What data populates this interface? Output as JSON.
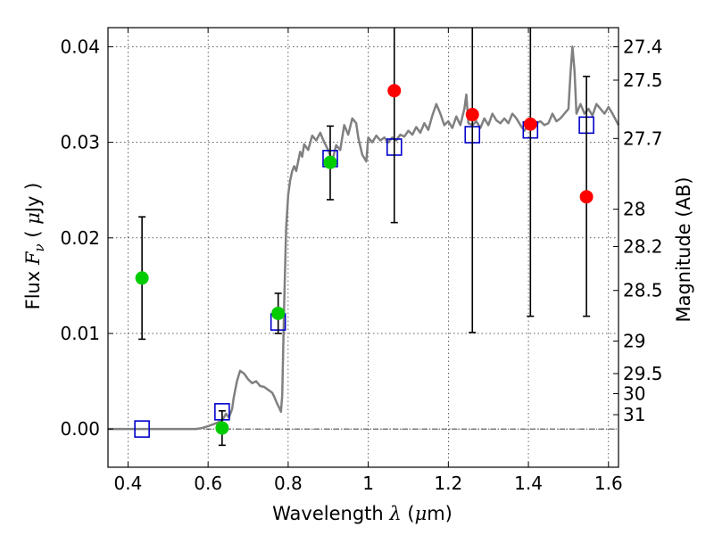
{
  "chart_data": {
    "type": "scatter",
    "title": "",
    "xlabel": {
      "prefix": "Wavelength  ",
      "symbol": "λ",
      "suffix": " (",
      "unit_symbol": "μ",
      "unit": "m)"
    },
    "ylabel": {
      "prefix": "Flux  ",
      "symbol": "F",
      "subscript": "ν",
      "middle": "  (  ",
      "unit_symbol": "μ",
      "unit": "Jy  )"
    },
    "y2label": "Magnitude (AB)",
    "xlim": [
      0.35,
      1.625
    ],
    "ylim": [
      -0.004,
      0.042
    ],
    "grid": true,
    "x_ticks": [
      0.4,
      0.6,
      0.8,
      1.0,
      1.2,
      1.4,
      1.6
    ],
    "x_tick_labels": [
      "0.4",
      "0.6",
      "0.8",
      "1",
      "1.2",
      "1.4",
      "1.6"
    ],
    "y_ticks": [
      0.0,
      0.01,
      0.02,
      0.03,
      0.04
    ],
    "y_tick_labels": [
      "0.00",
      "0.01",
      "0.02",
      "0.03",
      "0.04"
    ],
    "mag_ticks": [
      {
        "label": "27.4",
        "flux": 0.04
      },
      {
        "label": "27.5",
        "flux": 0.0365
      },
      {
        "label": "27.7",
        "flux": 0.0304
      },
      {
        "label": "28",
        "flux": 0.023
      },
      {
        "label": "28.2",
        "flux": 0.0191
      },
      {
        "label": "28.5",
        "flux": 0.0145
      },
      {
        "label": "29",
        "flux": 0.0092
      },
      {
        "label": "29.5",
        "flux": 0.0058
      },
      {
        "label": "30",
        "flux": 0.0037
      },
      {
        "label": "31",
        "flux": 0.0015
      }
    ],
    "zero_line": true,
    "series": [
      {
        "kind": "line",
        "color": "#808080",
        "points": [
          [
            0.35,
            0.0
          ],
          [
            0.57,
            0.0
          ],
          [
            0.585,
            0.0001
          ],
          [
            0.6,
            0.0003
          ],
          [
            0.62,
            0.0006
          ],
          [
            0.635,
            0.0009
          ],
          [
            0.645,
            0.0016
          ],
          [
            0.652,
            0.0012
          ],
          [
            0.66,
            0.0021
          ],
          [
            0.664,
            0.0033
          ],
          [
            0.672,
            0.005
          ],
          [
            0.68,
            0.0061
          ],
          [
            0.69,
            0.0058
          ],
          [
            0.7,
            0.0052
          ],
          [
            0.71,
            0.0048
          ],
          [
            0.72,
            0.005
          ],
          [
            0.73,
            0.0045
          ],
          [
            0.74,
            0.0044
          ],
          [
            0.75,
            0.0041
          ],
          [
            0.76,
            0.0038
          ],
          [
            0.765,
            0.0034
          ],
          [
            0.772,
            0.0027
          ],
          [
            0.778,
            0.0022
          ],
          [
            0.782,
            0.0018
          ],
          [
            0.785,
            0.0035
          ],
          [
            0.79,
            0.013
          ],
          [
            0.795,
            0.021
          ],
          [
            0.8,
            0.0245
          ],
          [
            0.805,
            0.026
          ],
          [
            0.81,
            0.027
          ],
          [
            0.815,
            0.0275
          ],
          [
            0.82,
            0.027
          ],
          [
            0.83,
            0.029
          ],
          [
            0.835,
            0.0285
          ],
          [
            0.84,
            0.0298
          ],
          [
            0.85,
            0.0292
          ],
          [
            0.86,
            0.0307
          ],
          [
            0.87,
            0.0302
          ],
          [
            0.88,
            0.031
          ],
          [
            0.89,
            0.03
          ],
          [
            0.9,
            0.0292
          ],
          [
            0.91,
            0.028
          ],
          [
            0.92,
            0.0297
          ],
          [
            0.93,
            0.0292
          ],
          [
            0.94,
            0.0318
          ],
          [
            0.95,
            0.0308
          ],
          [
            0.96,
            0.0325
          ],
          [
            0.97,
            0.032
          ],
          [
            0.975,
            0.0305
          ],
          [
            0.985,
            0.0287
          ],
          [
            0.995,
            0.028
          ],
          [
            1.0,
            0.0305
          ],
          [
            1.01,
            0.03
          ],
          [
            1.02,
            0.0307
          ],
          [
            1.03,
            0.0302
          ],
          [
            1.04,
            0.0305
          ],
          [
            1.05,
            0.03
          ],
          [
            1.06,
            0.0305
          ],
          [
            1.07,
            0.0302
          ],
          [
            1.08,
            0.0308
          ],
          [
            1.09,
            0.0306
          ],
          [
            1.1,
            0.0312
          ],
          [
            1.11,
            0.0308
          ],
          [
            1.12,
            0.0316
          ],
          [
            1.13,
            0.031
          ],
          [
            1.14,
            0.032
          ],
          [
            1.15,
            0.0313
          ],
          [
            1.16,
            0.0328
          ],
          [
            1.17,
            0.034
          ],
          [
            1.18,
            0.033
          ],
          [
            1.19,
            0.0318
          ],
          [
            1.2,
            0.0322
          ],
          [
            1.21,
            0.0315
          ],
          [
            1.22,
            0.0327
          ],
          [
            1.23,
            0.0318
          ],
          [
            1.24,
            0.0335
          ],
          [
            1.245,
            0.035
          ],
          [
            1.25,
            0.032
          ],
          [
            1.26,
            0.0318
          ],
          [
            1.27,
            0.0322
          ],
          [
            1.28,
            0.0315
          ],
          [
            1.29,
            0.0325
          ],
          [
            1.3,
            0.0318
          ],
          [
            1.31,
            0.033
          ],
          [
            1.32,
            0.0323
          ],
          [
            1.33,
            0.032
          ],
          [
            1.34,
            0.0325
          ],
          [
            1.35,
            0.032
          ],
          [
            1.36,
            0.033
          ],
          [
            1.37,
            0.0325
          ],
          [
            1.38,
            0.0318
          ],
          [
            1.39,
            0.0312
          ],
          [
            1.4,
            0.032
          ],
          [
            1.41,
            0.0316
          ],
          [
            1.42,
            0.032
          ],
          [
            1.43,
            0.0322
          ],
          [
            1.44,
            0.0318
          ],
          [
            1.45,
            0.032
          ],
          [
            1.46,
            0.033
          ],
          [
            1.47,
            0.0322
          ],
          [
            1.48,
            0.0325
          ],
          [
            1.49,
            0.033
          ],
          [
            1.5,
            0.0335
          ],
          [
            1.505,
            0.0372
          ],
          [
            1.51,
            0.04
          ],
          [
            1.515,
            0.0375
          ],
          [
            1.52,
            0.033
          ],
          [
            1.53,
            0.034
          ],
          [
            1.54,
            0.033
          ],
          [
            1.55,
            0.0335
          ],
          [
            1.56,
            0.0328
          ],
          [
            1.57,
            0.034
          ],
          [
            1.58,
            0.0335
          ],
          [
            1.59,
            0.033
          ],
          [
            1.6,
            0.0337
          ],
          [
            1.61,
            0.033
          ],
          [
            1.625,
            0.0318
          ]
        ]
      },
      {
        "kind": "model-squares",
        "color": "#0000cc",
        "points": [
          [
            0.435,
            0.0
          ],
          [
            0.635,
            0.0018
          ],
          [
            0.775,
            0.0112
          ],
          [
            0.905,
            0.0283
          ],
          [
            1.065,
            0.0295
          ],
          [
            1.26,
            0.0308
          ],
          [
            1.405,
            0.0313
          ],
          [
            1.545,
            0.0318
          ]
        ]
      },
      {
        "kind": "observed-green",
        "color": "#00cc00",
        "points": [
          {
            "x": 0.435,
            "y": 0.0158,
            "ylo": 0.0094,
            "yhi": 0.0222
          },
          {
            "x": 0.635,
            "y": 0.0001,
            "ylo": -0.0017,
            "yhi": 0.0019
          },
          {
            "x": 0.775,
            "y": 0.0121,
            "ylo": 0.01,
            "yhi": 0.0142
          },
          {
            "x": 0.905,
            "y": 0.0279,
            "ylo": 0.024,
            "yhi": 0.0317
          }
        ]
      },
      {
        "kind": "observed-red",
        "color": "#ff0000",
        "points": [
          {
            "x": 1.065,
            "y": 0.0354,
            "ylo": 0.0216,
            "yhi": 0.042
          },
          {
            "x": 1.26,
            "y": 0.0329,
            "ylo": 0.0101,
            "yhi": 0.042
          },
          {
            "x": 1.405,
            "y": 0.0319,
            "ylo": 0.0118,
            "yhi": 0.042
          },
          {
            "x": 1.545,
            "y": 0.0243,
            "ylo": 0.0118,
            "yhi": 0.0369
          }
        ]
      }
    ]
  }
}
